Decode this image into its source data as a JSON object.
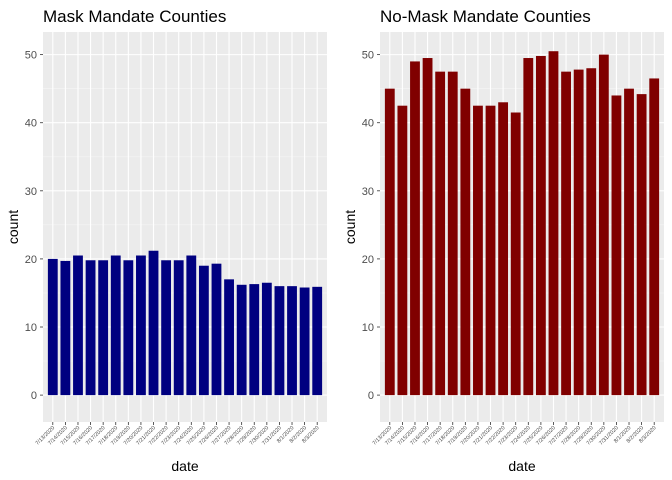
{
  "chart_data": [
    {
      "type": "bar",
      "title": "Mask Mandate Counties",
      "xlabel": "date",
      "ylabel": "count",
      "ylim": [
        0,
        52
      ],
      "yticks": [
        0,
        10,
        20,
        30,
        40,
        50
      ],
      "grid": true,
      "bar_color": "#000080",
      "categories": [
        "7/13/2020",
        "7/14/2020",
        "7/15/2020",
        "7/16/2020",
        "7/17/2020",
        "7/18/2020",
        "7/19/2020",
        "7/20/2020",
        "7/21/2020",
        "7/22/2020",
        "7/23/2020",
        "7/24/2020",
        "7/25/2020",
        "7/26/2020",
        "7/27/2020",
        "7/28/2020",
        "7/29/2020",
        "7/30/2020",
        "7/31/2020",
        "8/1/2020",
        "8/2/2020",
        "8/3/2020"
      ],
      "values": [
        20.0,
        19.7,
        20.5,
        19.8,
        19.8,
        20.5,
        19.8,
        20.5,
        21.2,
        19.8,
        19.8,
        20.5,
        19.0,
        19.3,
        17.0,
        16.2,
        16.3,
        16.5,
        16.0,
        16.0,
        15.8,
        15.9
      ]
    },
    {
      "type": "bar",
      "title": "No-Mask Mandate Counties",
      "xlabel": "date",
      "ylabel": "count",
      "ylim": [
        0,
        52
      ],
      "yticks": [
        0,
        10,
        20,
        30,
        40,
        50
      ],
      "grid": true,
      "bar_color": "#800000",
      "categories": [
        "7/13/2020",
        "7/14/2020",
        "7/15/2020",
        "7/16/2020",
        "7/17/2020",
        "7/18/2020",
        "7/19/2020",
        "7/20/2020",
        "7/21/2020",
        "7/22/2020",
        "7/23/2020",
        "7/24/2020",
        "7/25/2020",
        "7/26/2020",
        "7/27/2020",
        "7/28/2020",
        "7/29/2020",
        "7/30/2020",
        "7/31/2020",
        "8/1/2020",
        "8/2/2020",
        "8/3/2020"
      ],
      "values": [
        45.0,
        42.5,
        49.0,
        49.5,
        47.5,
        47.5,
        45.0,
        42.5,
        42.5,
        43.0,
        41.5,
        49.5,
        49.8,
        50.5,
        47.5,
        47.8,
        48.0,
        50.0,
        44.0,
        45.0,
        44.2,
        46.5
      ]
    }
  ]
}
